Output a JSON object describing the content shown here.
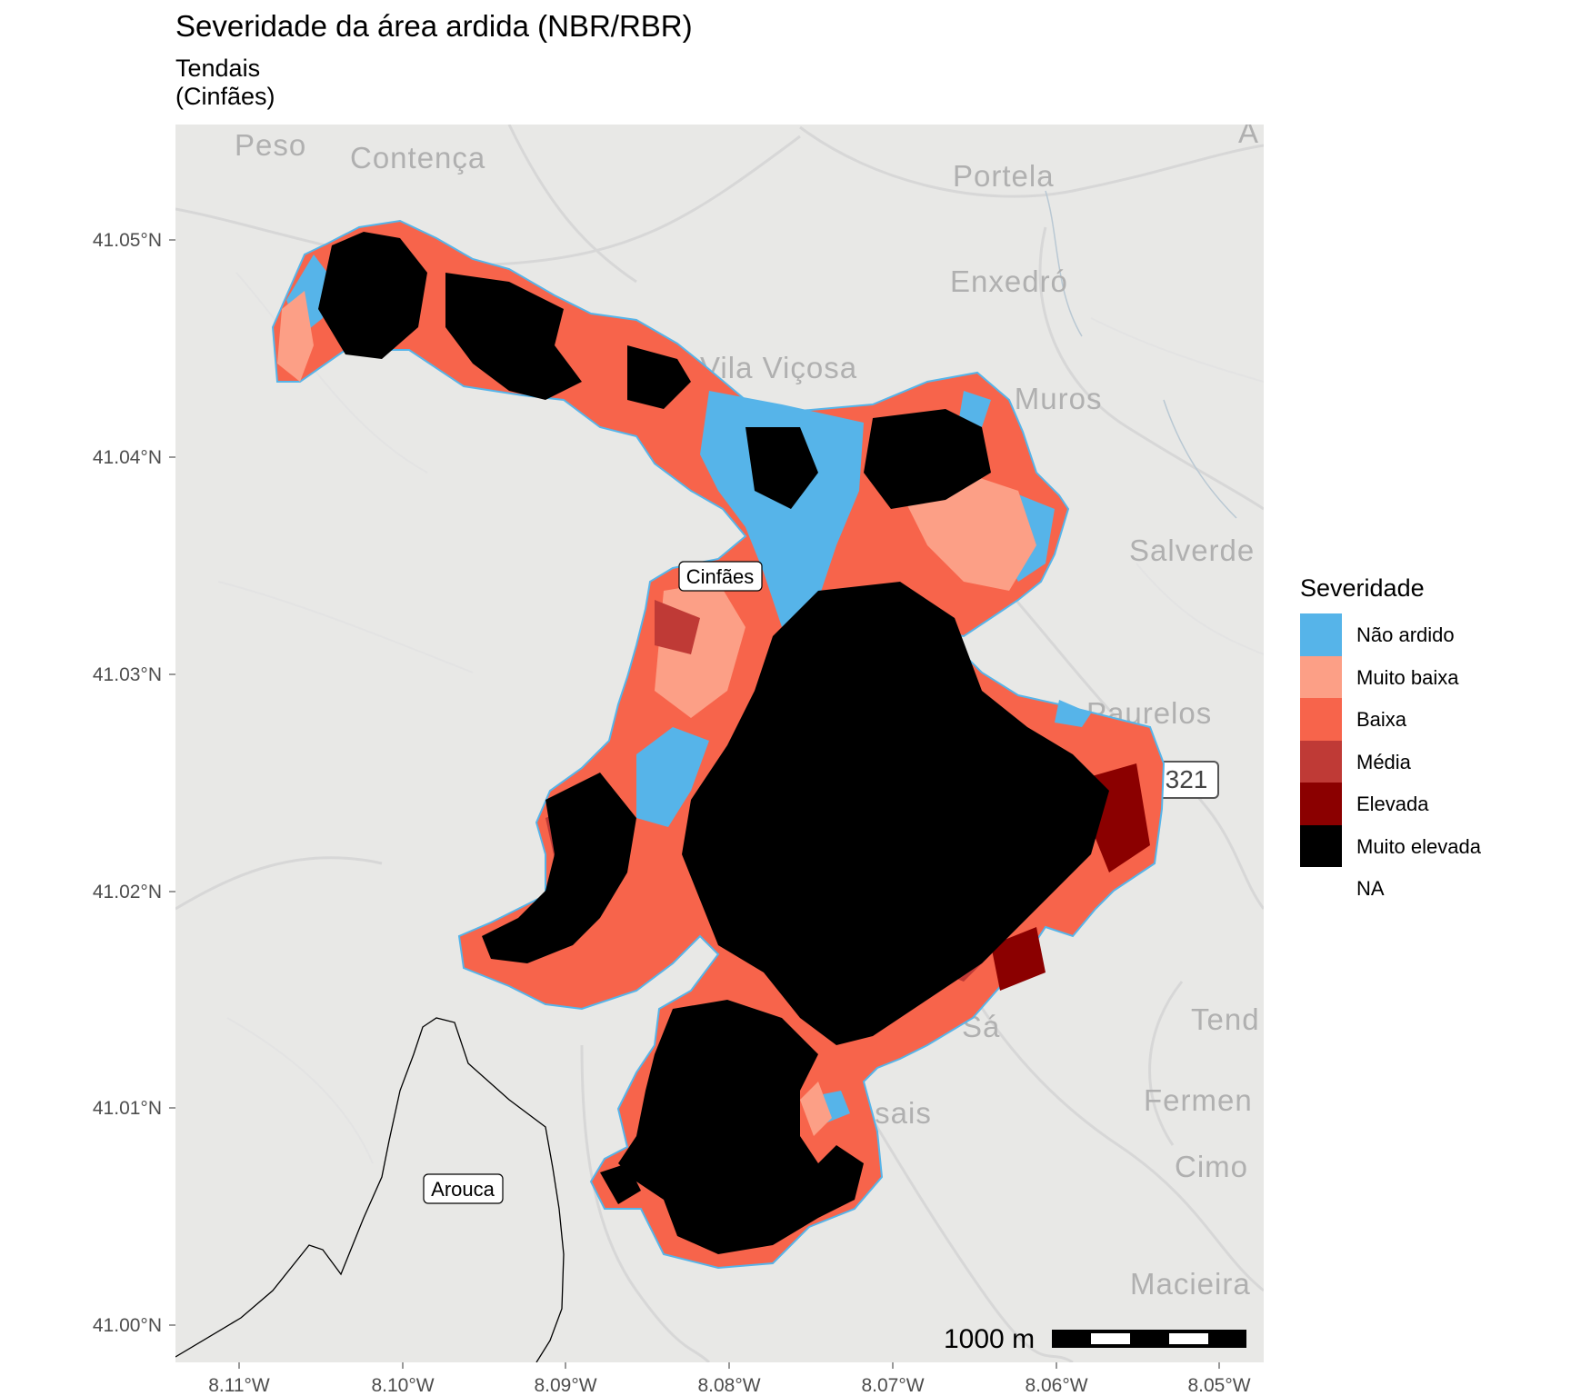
{
  "title": "Severidade da área ardida (NBR/RBR)",
  "subtitle_lines": [
    "Tendais",
    "(Cinfães)"
  ],
  "axes": {
    "y_ticks": [
      "41.05°N",
      "41.04°N",
      "41.03°N",
      "41.02°N",
      "41.01°N",
      "41.00°N"
    ],
    "x_ticks": [
      "8.11°W",
      "8.10°W",
      "8.09°W",
      "8.08°W",
      "8.07°W",
      "8.06°W",
      "8.05°W"
    ]
  },
  "basemap_places": [
    "Peso",
    "Contença",
    "Portela",
    "Enxedró",
    "Vila Viçosa",
    "Vale Muros",
    "Salverde",
    "Paurelos",
    "Tend",
    "Sá",
    "Fermen",
    "Casais",
    "Cimo",
    "Macieira",
    "A"
  ],
  "road_shield": "321",
  "polygon_labels": [
    "Cinfães",
    "Arouca"
  ],
  "scalebar": {
    "label": "1000 m"
  },
  "legend": {
    "title": "Severidade",
    "items": [
      {
        "label": "Não ardido",
        "color": "#56b4e9"
      },
      {
        "label": "Muito baixa",
        "color": "#fc9f86"
      },
      {
        "label": "Baixa",
        "color": "#f7644b"
      },
      {
        "label": "Média",
        "color": "#bf3a36"
      },
      {
        "label": "Elevada",
        "color": "#8b0000"
      },
      {
        "label": "Muito elevada",
        "color": "#000000"
      },
      {
        "label": "NA",
        "color": "#ffffff"
      }
    ]
  },
  "colors": {
    "basemap": "#e8e8e6",
    "roads": "#d6d6d6"
  }
}
